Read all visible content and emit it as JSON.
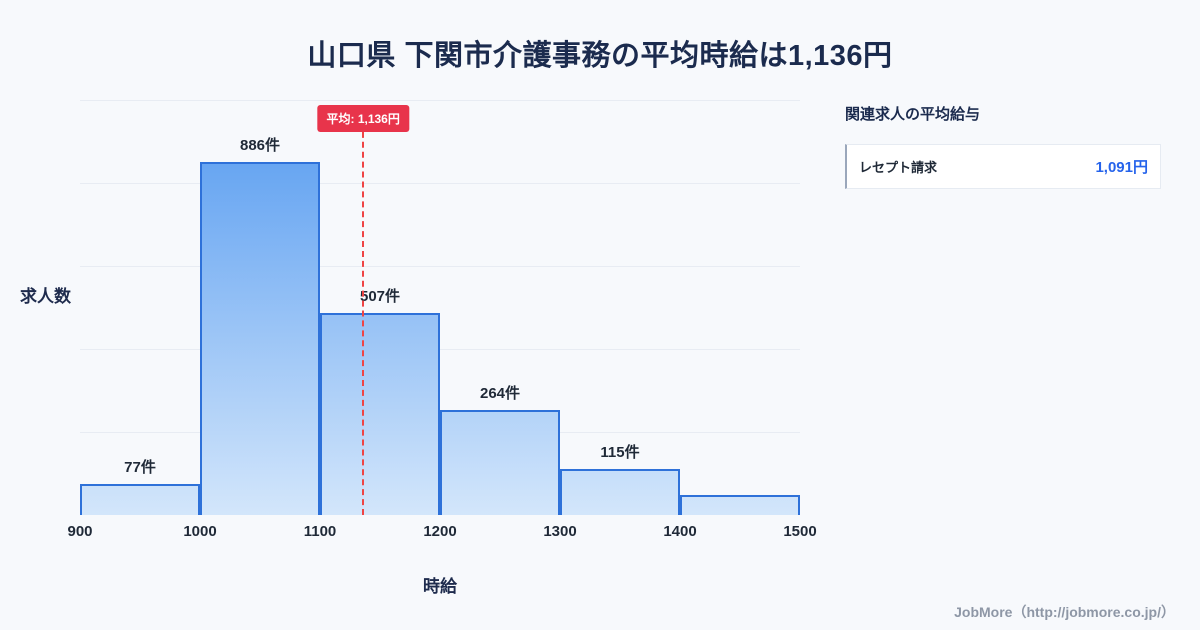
{
  "page": {
    "title": "山口県 下関市介護事務の平均時給は1,136円"
  },
  "chart_data": {
    "type": "bar",
    "title": "山口県 下関市介護事務の平均時給は1,136円",
    "xlabel": "時給",
    "ylabel": "求人数",
    "bins": [
      900,
      1000,
      1100,
      1200,
      1300,
      1400,
      1500
    ],
    "categories": [
      "900-1000",
      "1000-1100",
      "1100-1200",
      "1200-1300",
      "1300-1400",
      "1400-1500"
    ],
    "values": [
      77,
      886,
      507,
      264,
      115,
      50
    ],
    "bar_labels": [
      "77件",
      "886件",
      "507件",
      "264件",
      "115件",
      ""
    ],
    "x_ticks": [
      "900",
      "1000",
      "1100",
      "1200",
      "1300",
      "1400",
      "1500"
    ],
    "ylim": [
      0,
      1000
    ],
    "grid": true,
    "legend": "none",
    "average": {
      "value": 1136,
      "label": "平均: 1,136円"
    },
    "colors": {
      "bar_top": "#549af0",
      "bar_bottom": "#d3e6fb",
      "bar_border": "#2e71d9",
      "avg_line": "#ef4444",
      "avg_badge": "#e8344b",
      "grid": "#e8ecf3"
    }
  },
  "side_panel": {
    "heading": "関連求人の平均給与",
    "items": [
      {
        "label": "レセプト請求",
        "value": "1,091円"
      }
    ]
  },
  "footer": {
    "credit": "JobMore（http://jobmore.co.jp/）"
  }
}
